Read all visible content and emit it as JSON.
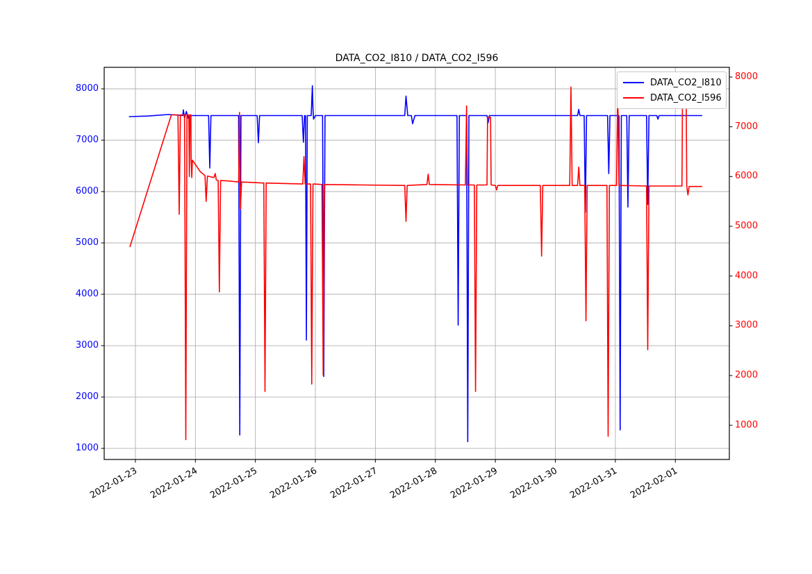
{
  "title": "DATA_CO2_I810 / DATA_CO2_I596",
  "legend": {
    "items": [
      {
        "label": "DATA_CO2_I810",
        "color": "#0000ff"
      },
      {
        "label": "DATA_CO2_I596",
        "color": "#ff0000"
      }
    ]
  },
  "chart_data": {
    "type": "line",
    "title": "DATA_CO2_I810 / DATA_CO2_I596",
    "grid": true,
    "legend_position": "upper right",
    "x_unit": "days since 2022-01-23 00:00",
    "xlim_days": [
      -0.52,
      9.9
    ],
    "x_ticks_days": [
      0,
      1,
      2,
      3,
      4,
      5,
      6,
      7,
      8,
      9
    ],
    "x_tick_labels": [
      "2022-01-23",
      "2022-01-24",
      "2022-01-25",
      "2022-01-26",
      "2022-01-27",
      "2022-01-28",
      "2022-01-29",
      "2022-01-30",
      "2022-01-31",
      "2022-02-01"
    ],
    "left_axis": {
      "color": "#0000ff",
      "lim": [
        784,
        8419
      ],
      "ticks": [
        1000,
        2000,
        3000,
        4000,
        5000,
        6000,
        7000,
        8000
      ]
    },
    "right_axis": {
      "color": "#ff0000",
      "lim": [
        313,
        8195
      ],
      "ticks": [
        1000,
        2000,
        3000,
        4000,
        5000,
        6000,
        7000,
        8000
      ]
    },
    "series": [
      {
        "name": "DATA_CO2_I810",
        "axis": "left",
        "color": "#0000ff",
        "points": [
          [
            -0.1,
            7460
          ],
          [
            0.2,
            7470
          ],
          [
            0.55,
            7500
          ],
          [
            0.7,
            7490
          ],
          [
            0.79,
            7480
          ],
          [
            0.8,
            7590
          ],
          [
            0.82,
            7430
          ],
          [
            0.85,
            7560
          ],
          [
            0.88,
            7430
          ],
          [
            0.92,
            7480
          ],
          [
            1.22,
            7480
          ],
          [
            1.24,
            6460
          ],
          [
            1.26,
            7480
          ],
          [
            1.72,
            7480
          ],
          [
            1.74,
            1260
          ],
          [
            1.76,
            7480
          ],
          [
            2.03,
            7480
          ],
          [
            2.05,
            6950
          ],
          [
            2.07,
            7480
          ],
          [
            2.78,
            7480
          ],
          [
            2.8,
            6960
          ],
          [
            2.82,
            7480
          ],
          [
            2.835,
            7480
          ],
          [
            2.85,
            3110
          ],
          [
            2.865,
            7480
          ],
          [
            2.93,
            7480
          ],
          [
            2.95,
            8060
          ],
          [
            2.96,
            7600
          ],
          [
            2.97,
            7410
          ],
          [
            3.0,
            7480
          ],
          [
            3.12,
            7480
          ],
          [
            3.14,
            2400
          ],
          [
            3.16,
            7480
          ],
          [
            4.49,
            7480
          ],
          [
            4.51,
            7860
          ],
          [
            4.54,
            7480
          ],
          [
            4.6,
            7480
          ],
          [
            4.62,
            7320
          ],
          [
            4.66,
            7480
          ],
          [
            5.36,
            7480
          ],
          [
            5.38,
            3400
          ],
          [
            5.4,
            7480
          ],
          [
            5.52,
            7480
          ],
          [
            5.54,
            1130
          ],
          [
            5.56,
            7480
          ],
          [
            5.86,
            7480
          ],
          [
            5.88,
            7340
          ],
          [
            5.9,
            7480
          ],
          [
            7.37,
            7480
          ],
          [
            7.39,
            7600
          ],
          [
            7.41,
            7480
          ],
          [
            7.48,
            7480
          ],
          [
            7.5,
            5600
          ],
          [
            7.52,
            7480
          ],
          [
            7.87,
            7480
          ],
          [
            7.89,
            6350
          ],
          [
            7.91,
            7480
          ],
          [
            8.06,
            7480
          ],
          [
            8.08,
            1360
          ],
          [
            8.1,
            7480
          ],
          [
            8.19,
            7480
          ],
          [
            8.21,
            5700
          ],
          [
            8.23,
            7480
          ],
          [
            8.52,
            7480
          ],
          [
            8.54,
            5750
          ],
          [
            8.56,
            7480
          ],
          [
            8.69,
            7480
          ],
          [
            8.71,
            7410
          ],
          [
            8.73,
            7480
          ],
          [
            9.44,
            7480
          ]
        ]
      },
      {
        "name": "DATA_CO2_I596",
        "axis": "right",
        "color": "#ff0000",
        "points": [
          [
            -0.09,
            4590
          ],
          [
            0.6,
            7240
          ],
          [
            0.71,
            7240
          ],
          [
            0.73,
            5240
          ],
          [
            0.75,
            7240
          ],
          [
            0.82,
            7240
          ],
          [
            0.84,
            710
          ],
          [
            0.86,
            7240
          ],
          [
            0.89,
            7240
          ],
          [
            0.9,
            6000
          ],
          [
            0.91,
            7240
          ],
          [
            0.925,
            7240
          ],
          [
            0.93,
            6330
          ],
          [
            0.94,
            5980
          ],
          [
            0.95,
            6330
          ],
          [
            1.08,
            6100
          ],
          [
            1.16,
            6020
          ],
          [
            1.18,
            5500
          ],
          [
            1.2,
            6010
          ],
          [
            1.31,
            5980
          ],
          [
            1.33,
            6060
          ],
          [
            1.35,
            5930
          ],
          [
            1.38,
            5920
          ],
          [
            1.4,
            3680
          ],
          [
            1.42,
            5920
          ],
          [
            1.56,
            5910
          ],
          [
            1.72,
            5890
          ],
          [
            1.735,
            7290
          ],
          [
            1.75,
            5350
          ],
          [
            1.77,
            5890
          ],
          [
            2.14,
            5870
          ],
          [
            2.16,
            1680
          ],
          [
            2.18,
            5870
          ],
          [
            2.5,
            5860
          ],
          [
            2.79,
            5850
          ],
          [
            2.81,
            6400
          ],
          [
            2.83,
            5850
          ],
          [
            2.92,
            5850
          ],
          [
            2.94,
            1830
          ],
          [
            2.96,
            5850
          ],
          [
            3.11,
            5840
          ],
          [
            3.13,
            2010
          ],
          [
            3.15,
            5840
          ],
          [
            3.8,
            5830
          ],
          [
            4.49,
            5820
          ],
          [
            4.51,
            5100
          ],
          [
            4.53,
            5820
          ],
          [
            4.86,
            5840
          ],
          [
            4.88,
            6050
          ],
          [
            4.9,
            5840
          ],
          [
            5.5,
            5830
          ],
          [
            5.52,
            7420
          ],
          [
            5.535,
            5830
          ],
          [
            5.65,
            5830
          ],
          [
            5.67,
            1680
          ],
          [
            5.69,
            5830
          ],
          [
            5.86,
            5830
          ],
          [
            5.87,
            7190
          ],
          [
            5.92,
            7190
          ],
          [
            5.93,
            5830
          ],
          [
            6.0,
            5820
          ],
          [
            6.02,
            5730
          ],
          [
            6.04,
            5820
          ],
          [
            6.75,
            5820
          ],
          [
            6.77,
            4400
          ],
          [
            6.79,
            5820
          ],
          [
            7.24,
            5820
          ],
          [
            7.26,
            7800
          ],
          [
            7.28,
            5820
          ],
          [
            7.37,
            5820
          ],
          [
            7.39,
            6190
          ],
          [
            7.41,
            5820
          ],
          [
            7.49,
            5820
          ],
          [
            7.51,
            3100
          ],
          [
            7.53,
            5820
          ],
          [
            7.86,
            5820
          ],
          [
            7.88,
            780
          ],
          [
            7.9,
            5820
          ],
          [
            8.02,
            5820
          ],
          [
            8.04,
            7770
          ],
          [
            8.06,
            5820
          ],
          [
            8.52,
            5810
          ],
          [
            8.54,
            2520
          ],
          [
            8.56,
            5810
          ],
          [
            9.11,
            5810
          ],
          [
            9.12,
            7730
          ],
          [
            9.18,
            7730
          ],
          [
            9.19,
            5810
          ],
          [
            9.21,
            5630
          ],
          [
            9.23,
            5800
          ],
          [
            9.44,
            5800
          ]
        ]
      }
    ],
    "colors": {
      "grid": "#b0b0b0",
      "spine": "#000000",
      "background": "#ffffff"
    }
  }
}
